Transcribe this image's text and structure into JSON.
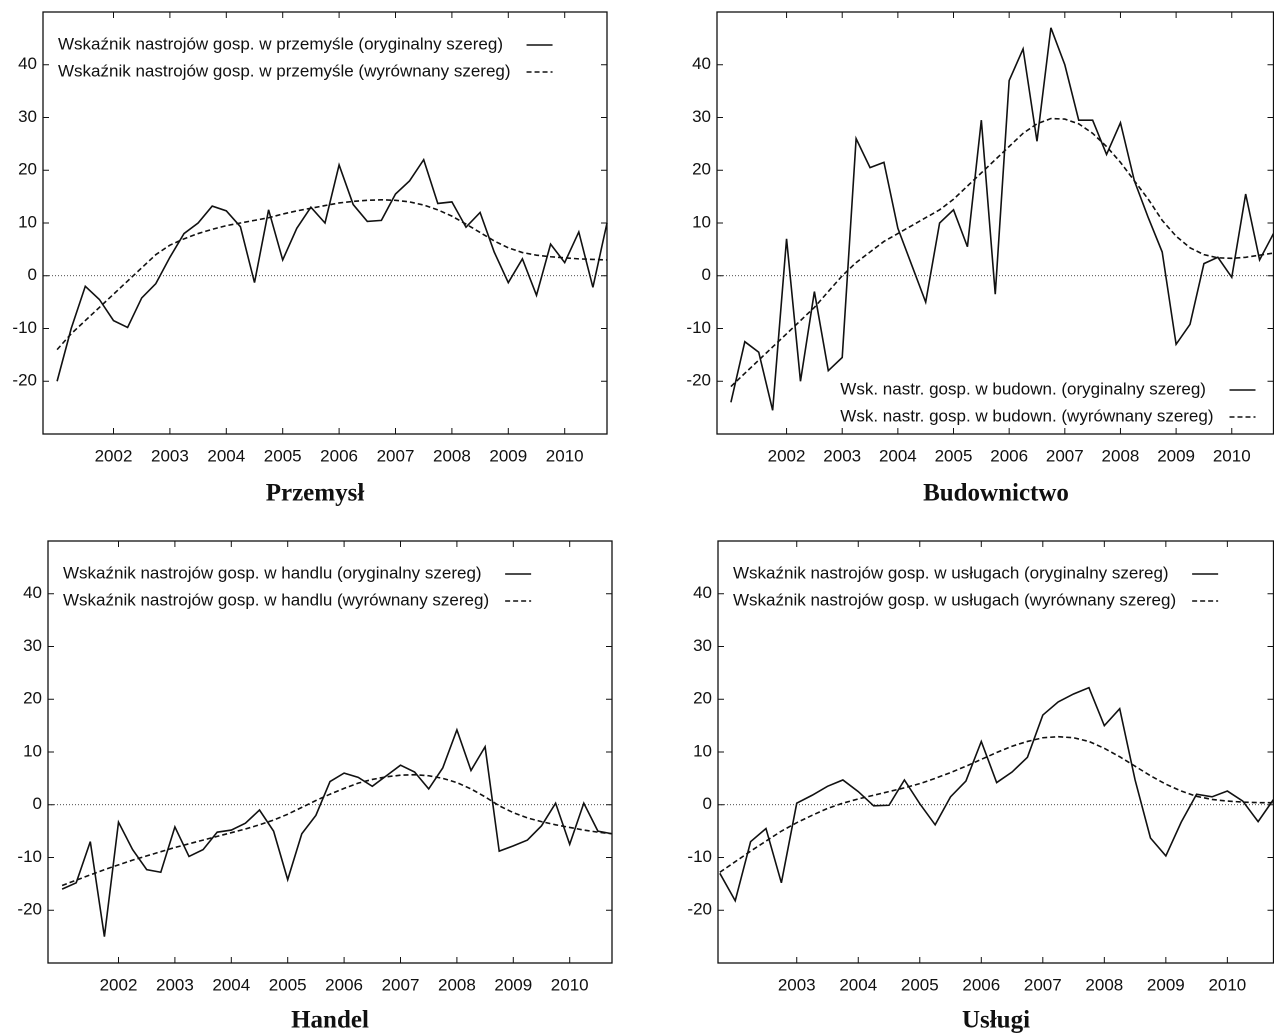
{
  "chart_data": [
    {
      "type": "line",
      "title": "Przemysł",
      "legend": "upper left",
      "x": [
        2001,
        2001.25,
        2001.5,
        2001.75,
        2002,
        2002.25,
        2002.5,
        2002.75,
        2003,
        2003.25,
        2003.5,
        2003.75,
        2004,
        2004.25,
        2004.5,
        2004.75,
        2005,
        2005.25,
        2005.5,
        2005.75,
        2006,
        2006.25,
        2006.5,
        2006.75,
        2007,
        2007.25,
        2007.5,
        2007.75,
        2008,
        2008.25,
        2008.5,
        2008.75,
        2009,
        2009.25,
        2009.5,
        2009.75,
        2010,
        2010.25,
        2010.5,
        2010.75
      ],
      "xlim": [
        2000.75,
        2010.75
      ],
      "xticks": [
        2002,
        2003,
        2004,
        2005,
        2006,
        2007,
        2008,
        2009,
        2010
      ],
      "ylim": [
        -30,
        50
      ],
      "yticks": [
        -20,
        -10,
        0,
        10,
        20,
        30,
        40
      ],
      "series": [
        {
          "name": "Wskaźnik nastrojów gosp. w przemyśle (oryginalny szereg)",
          "color": "#111",
          "style": "solid",
          "values": [
            -20,
            -10,
            -2,
            -4.5,
            -8.5,
            -9.8,
            -4.2,
            -1.5,
            3.5,
            8,
            10,
            13.2,
            12.3,
            9.3,
            -1.3,
            12.5,
            3,
            9,
            13,
            10,
            21,
            13.5,
            10.3,
            10.5,
            15.5,
            18,
            22,
            13.7,
            14,
            9.2,
            12,
            4.5,
            -1.3,
            3.2,
            -3.7,
            6,
            2.5,
            8.3,
            -2.2,
            10
          ]
        },
        {
          "name": "Wskaźnik nastrojów gosp. w przemyśle (wyrównany szereg)",
          "color": "#111",
          "style": "dashed",
          "values": [
            -14,
            -11,
            -8.5,
            -6,
            -3.5,
            -1,
            1.5,
            4,
            5.8,
            7,
            8,
            8.8,
            9.5,
            10,
            10.5,
            11,
            11.7,
            12.3,
            12.8,
            13.3,
            13.8,
            14.1,
            14.3,
            14.4,
            14.3,
            14,
            13.4,
            12.5,
            11.3,
            9.8,
            8.2,
            6.6,
            5.3,
            4.4,
            3.9,
            3.6,
            3.4,
            3.2,
            3.1,
            3
          ]
        }
      ]
    },
    {
      "type": "line",
      "title": "Budownictwo",
      "legend": "lower right",
      "x": [
        2001,
        2001.25,
        2001.5,
        2001.75,
        2002,
        2002.25,
        2002.5,
        2002.75,
        2003,
        2003.25,
        2003.5,
        2003.75,
        2004,
        2004.25,
        2004.5,
        2004.75,
        2005,
        2005.25,
        2005.5,
        2005.75,
        2006,
        2006.25,
        2006.5,
        2006.75,
        2007,
        2007.25,
        2007.5,
        2007.75,
        2008,
        2008.25,
        2008.5,
        2008.75,
        2009,
        2009.25,
        2009.5,
        2009.75,
        2010,
        2010.25,
        2010.5,
        2010.75
      ],
      "xlim": [
        2000.75,
        2010.75
      ],
      "xticks": [
        2002,
        2003,
        2004,
        2005,
        2006,
        2007,
        2008,
        2009,
        2010
      ],
      "ylim": [
        -30,
        50
      ],
      "yticks": [
        -20,
        -10,
        0,
        10,
        20,
        30,
        40
      ],
      "series": [
        {
          "name": "Wsk. nastr. gosp. w budown. (oryginalny szereg)",
          "color": "#111",
          "style": "solid",
          "values": [
            -24,
            -12.5,
            -14.5,
            -25.5,
            7,
            -20,
            -3,
            -18,
            -15.5,
            26,
            20.5,
            21.5,
            9,
            2,
            -5,
            10,
            12.5,
            5.5,
            29.5,
            -3.5,
            37,
            43,
            25.5,
            47,
            40,
            29.5,
            29.5,
            23,
            29,
            18,
            11,
            4.5,
            -13,
            -9.2,
            2.3,
            3.5,
            -0.3,
            15.5,
            3,
            8
          ]
        },
        {
          "name": "Wsk. nastr. gosp. w budown. (wyrównany szereg)",
          "color": "#111",
          "style": "dashed",
          "values": [
            -21,
            -18.5,
            -16,
            -13.5,
            -11,
            -8.5,
            -6,
            -3,
            0,
            2.5,
            4.5,
            6.5,
            8,
            9.5,
            11,
            12.5,
            14.5,
            17,
            19.5,
            22,
            24.5,
            27,
            28.8,
            29.8,
            29.7,
            28.8,
            27,
            24.5,
            21.5,
            18,
            14.5,
            10.5,
            7.5,
            5.3,
            4,
            3.4,
            3.3,
            3.5,
            3.9,
            4.3
          ]
        }
      ]
    },
    {
      "type": "line",
      "title": "Handel",
      "legend": "upper left",
      "x": [
        2001,
        2001.25,
        2001.5,
        2001.75,
        2002,
        2002.25,
        2002.5,
        2002.75,
        2003,
        2003.25,
        2003.5,
        2003.75,
        2004,
        2004.25,
        2004.5,
        2004.75,
        2005,
        2005.25,
        2005.5,
        2005.75,
        2006,
        2006.25,
        2006.5,
        2006.75,
        2007,
        2007.25,
        2007.5,
        2007.75,
        2008,
        2008.25,
        2008.5,
        2008.75,
        2009,
        2009.25,
        2009.5,
        2009.75,
        2010,
        2010.25,
        2010.5,
        2010.75
      ],
      "xlim": [
        2000.75,
        2010.75
      ],
      "xticks": [
        2002,
        2003,
        2004,
        2005,
        2006,
        2007,
        2008,
        2009,
        2010
      ],
      "ylim": [
        -30,
        50
      ],
      "yticks": [
        -20,
        -10,
        0,
        10,
        20,
        30,
        40
      ],
      "series": [
        {
          "name": "Wskaźnik nastrojów gosp. w handlu (oryginalny szereg)",
          "color": "#111",
          "style": "solid",
          "values": [
            -16,
            -14.8,
            -7,
            -25,
            -3.3,
            -8.5,
            -12.3,
            -12.8,
            -4.2,
            -9.8,
            -8.5,
            -5.2,
            -4.8,
            -3.5,
            -1,
            -5,
            -14.2,
            -5.5,
            -2,
            4.4,
            6,
            5.2,
            3.5,
            5.5,
            7.5,
            6.2,
            3,
            7,
            14.2,
            6.5,
            11,
            -8.8,
            -7.8,
            -6.7,
            -4,
            0.3,
            -7.5,
            0.3,
            -5,
            -5.5
          ]
        },
        {
          "name": "Wskaźnik nastrojów gosp. w handlu (wyrównany szereg)",
          "color": "#111",
          "style": "dashed",
          "values": [
            -15.3,
            -14.3,
            -13.3,
            -12.3,
            -11.4,
            -10.5,
            -9.7,
            -8.9,
            -8.1,
            -7.4,
            -6.7,
            -6,
            -5.3,
            -4.6,
            -3.8,
            -2.9,
            -1.8,
            -0.5,
            0.8,
            2,
            3.1,
            4.1,
            4.8,
            5.3,
            5.6,
            5.7,
            5.5,
            5,
            4.2,
            3,
            1.5,
            -0.2,
            -1.5,
            -2.5,
            -3.2,
            -3.8,
            -4.3,
            -4.8,
            -5.2,
            -5.5
          ]
        }
      ]
    },
    {
      "type": "line",
      "title": "Usługi",
      "legend": "upper left",
      "x": [
        2001.75,
        2002,
        2002.25,
        2002.5,
        2002.75,
        2003,
        2003.25,
        2003.5,
        2003.75,
        2004,
        2004.25,
        2004.5,
        2004.75,
        2005,
        2005.25,
        2005.5,
        2005.75,
        2006,
        2006.25,
        2006.5,
        2006.75,
        2007,
        2007.25,
        2007.5,
        2007.75,
        2008,
        2008.25,
        2008.5,
        2008.75,
        2009,
        2009.25,
        2009.5,
        2009.75,
        2010,
        2010.25,
        2010.5,
        2010.75
      ],
      "xlim": [
        2001.72,
        2010.75
      ],
      "xticks": [
        2003,
        2004,
        2005,
        2006,
        2007,
        2008,
        2009,
        2010
      ],
      "ylim": [
        -30,
        50
      ],
      "yticks": [
        -20,
        -10,
        0,
        10,
        20,
        30,
        40
      ],
      "series": [
        {
          "name": "Wskaźnik nastrojów gosp. w usługach (oryginalny szereg)",
          "color": "#111",
          "style": "solid",
          "values": [
            -13,
            -18.2,
            -7,
            -4.5,
            -14.8,
            0.3,
            1.8,
            3.5,
            4.7,
            2.5,
            -0.2,
            -0.1,
            4.7,
            0.2,
            -3.8,
            1.5,
            4.5,
            12,
            4.2,
            6.2,
            9,
            17,
            19.5,
            21,
            22.2,
            15,
            18.2,
            4.7,
            -6.3,
            -9.7,
            -3.3,
            2,
            1.5,
            2.6,
            0.7,
            -3.2,
            1
          ]
        },
        {
          "name": "Wskaźnik nastrojów gosp. w usługach (wyrównany szereg)",
          "color": "#111",
          "style": "dashed",
          "values": [
            -12.8,
            -10.8,
            -8.8,
            -6.9,
            -5,
            -3.4,
            -2,
            -0.7,
            0.3,
            1.1,
            1.8,
            2.5,
            3.2,
            4,
            5,
            6.1,
            7.3,
            8.6,
            9.9,
            11.1,
            12,
            12.7,
            12.9,
            12.7,
            12,
            10.7,
            9.1,
            7.3,
            5.5,
            3.9,
            2.6,
            1.6,
            1,
            0.7,
            0.5,
            0.4,
            0.4
          ]
        }
      ]
    }
  ]
}
